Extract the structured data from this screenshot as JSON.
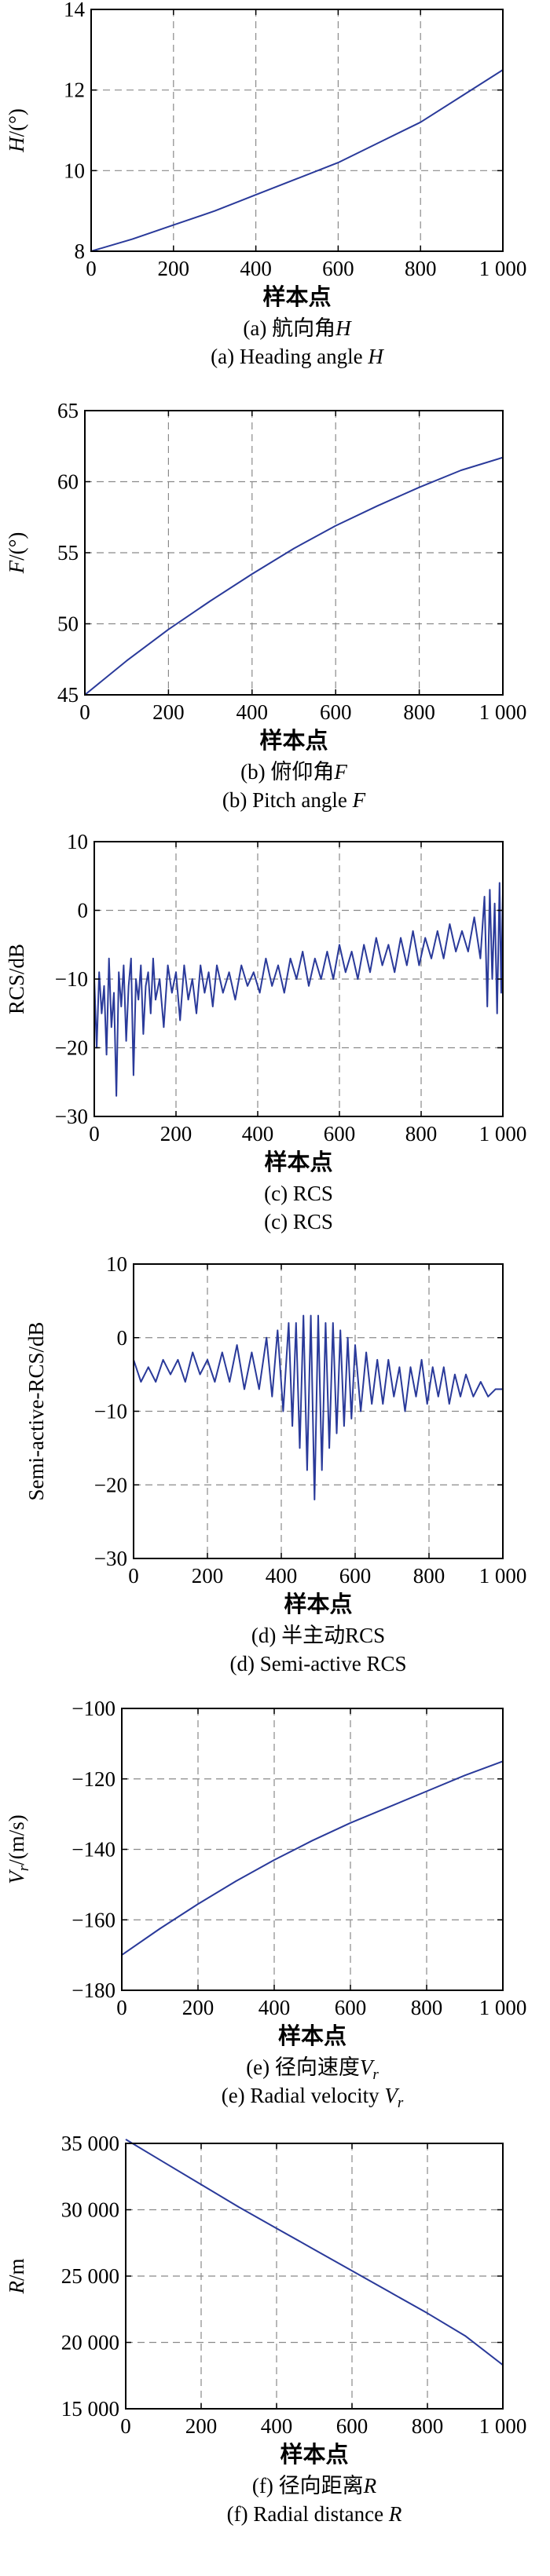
{
  "colors": {
    "line": "#2a3a9a",
    "grid": "#8a8a8a",
    "axis": "#000000",
    "text": "#000000"
  },
  "chart_data": [
    {
      "type": "line",
      "id": "a",
      "ylabel_main": "H",
      "ylabel_unit": "/(°)",
      "xlabel": "样本点",
      "caption_cn_prefix": "(a) 航向角",
      "caption_cn_var": "H",
      "caption_en_prefix": "(a) Heading angle ",
      "caption_en_var": "H",
      "xlim": [
        0,
        1000
      ],
      "ylim": [
        8,
        14
      ],
      "xticks": [
        0,
        200,
        400,
        600,
        800,
        1000
      ],
      "xtick_labels": [
        "0",
        "200",
        "400",
        "600",
        "800",
        "1 000"
      ],
      "yticks": [
        8,
        10,
        12,
        14
      ],
      "ytick_labels": [
        "8",
        "10",
        "12",
        "14"
      ],
      "grid": true,
      "x": [
        0,
        100,
        200,
        300,
        400,
        500,
        600,
        700,
        800,
        900,
        1000
      ],
      "y": [
        8.0,
        8.3,
        8.65,
        9.0,
        9.4,
        9.8,
        10.2,
        10.7,
        11.2,
        11.85,
        12.5
      ]
    },
    {
      "type": "line",
      "id": "b",
      "ylabel_main": "F",
      "ylabel_unit": "/(°)",
      "xlabel": "样本点",
      "caption_cn_prefix": "(b) 俯仰角",
      "caption_cn_var": "F",
      "caption_en_prefix": "(b) Pitch angle ",
      "caption_en_var": "F",
      "xlim": [
        0,
        1000
      ],
      "ylim": [
        45,
        65
      ],
      "xticks": [
        0,
        200,
        400,
        600,
        800,
        1000
      ],
      "xtick_labels": [
        "0",
        "200",
        "400",
        "600",
        "800",
        "1 000"
      ],
      "yticks": [
        45,
        50,
        55,
        60,
        65
      ],
      "ytick_labels": [
        "45",
        "50",
        "55",
        "60",
        "65"
      ],
      "grid": true,
      "x": [
        0,
        100,
        200,
        300,
        400,
        500,
        600,
        700,
        800,
        900,
        1000
      ],
      "y": [
        45.0,
        47.4,
        49.6,
        51.6,
        53.5,
        55.3,
        56.9,
        58.3,
        59.6,
        60.8,
        61.7
      ]
    },
    {
      "type": "line",
      "id": "c",
      "ylabel_main": "RCS/dB",
      "ylabel_unit": "",
      "xlabel": "样本点",
      "caption_cn_prefix": "(c) RCS",
      "caption_cn_var": "",
      "caption_en_prefix": "(c) RCS",
      "caption_en_var": "",
      "xlim": [
        0,
        1000
      ],
      "ylim": [
        -30,
        10
      ],
      "xticks": [
        0,
        200,
        400,
        600,
        800,
        1000
      ],
      "xtick_labels": [
        "0",
        "200",
        "400",
        "600",
        "800",
        "1 000"
      ],
      "yticks": [
        -30,
        -20,
        -10,
        0,
        10
      ],
      "ytick_labels": [
        "−30",
        "−20",
        "−10",
        "0",
        "10"
      ],
      "grid": true,
      "x": [
        0,
        6,
        12,
        18,
        24,
        30,
        36,
        42,
        48,
        54,
        60,
        66,
        72,
        78,
        84,
        90,
        96,
        102,
        108,
        114,
        120,
        126,
        132,
        138,
        144,
        150,
        160,
        170,
        180,
        190,
        200,
        210,
        220,
        230,
        240,
        250,
        260,
        270,
        280,
        290,
        300,
        315,
        330,
        345,
        360,
        375,
        390,
        405,
        420,
        435,
        450,
        465,
        480,
        495,
        510,
        525,
        540,
        555,
        570,
        585,
        600,
        615,
        630,
        645,
        660,
        675,
        690,
        705,
        720,
        735,
        750,
        765,
        780,
        795,
        810,
        825,
        840,
        855,
        870,
        885,
        900,
        915,
        930,
        945,
        955,
        962,
        968,
        974,
        980,
        986,
        992,
        996,
        1000
      ],
      "y": [
        -10,
        -20,
        -9,
        -15,
        -11,
        -21,
        -7,
        -17,
        -12,
        -27,
        -9,
        -14,
        -8,
        -19,
        -11,
        -7,
        -24,
        -10,
        -13,
        -8,
        -18,
        -11,
        -9,
        -15,
        -7,
        -13,
        -10,
        -17,
        -8,
        -12,
        -9,
        -16,
        -8,
        -13,
        -10,
        -15,
        -8,
        -12,
        -9,
        -14,
        -8,
        -12,
        -9,
        -13,
        -8,
        -11,
        -9,
        -12,
        -7,
        -11,
        -8,
        -12,
        -7,
        -10,
        -6,
        -11,
        -7,
        -10,
        -6,
        -10,
        -5,
        -9,
        -6,
        -10,
        -5,
        -9,
        -4,
        -8,
        -5,
        -9,
        -4,
        -8,
        -3,
        -8,
        -4,
        -7,
        -3,
        -7,
        -2,
        -6,
        -3,
        -6,
        -1,
        -7,
        2,
        -14,
        3,
        -10,
        1,
        -15,
        4,
        -12,
        3
      ]
    },
    {
      "type": "line",
      "id": "d",
      "ylabel_main": "Semi-active-RCS/dB",
      "ylabel_unit": "",
      "xlabel": "样本点",
      "caption_cn_prefix": "(d) 半主动RCS",
      "caption_cn_var": "",
      "caption_en_prefix": "(d) Semi-active RCS",
      "caption_en_var": "",
      "xlim": [
        0,
        1000
      ],
      "ylim": [
        -30,
        10
      ],
      "xticks": [
        0,
        200,
        400,
        600,
        800,
        1000
      ],
      "xtick_labels": [
        "0",
        "200",
        "400",
        "600",
        "800",
        "1 000"
      ],
      "yticks": [
        -30,
        -20,
        -10,
        0,
        10
      ],
      "ytick_labels": [
        "−30",
        "−20",
        "−10",
        "0",
        "10"
      ],
      "grid": true,
      "x": [
        0,
        20,
        40,
        60,
        80,
        100,
        120,
        140,
        160,
        180,
        200,
        220,
        240,
        260,
        280,
        300,
        320,
        340,
        360,
        375,
        390,
        405,
        420,
        430,
        440,
        450,
        460,
        470,
        480,
        490,
        500,
        510,
        520,
        530,
        540,
        550,
        560,
        570,
        580,
        590,
        600,
        615,
        630,
        645,
        660,
        675,
        690,
        705,
        720,
        735,
        750,
        765,
        780,
        795,
        810,
        825,
        840,
        855,
        870,
        885,
        900,
        920,
        940,
        960,
        980,
        1000
      ],
      "y": [
        -3,
        -6,
        -4,
        -6,
        -3,
        -5,
        -3,
        -6,
        -2,
        -5,
        -3,
        -6,
        -2,
        -6,
        -1,
        -7,
        -2,
        -7,
        0,
        -8,
        1,
        -10,
        2,
        -12,
        2,
        -15,
        3,
        -18,
        3,
        -22,
        3,
        -18,
        2,
        -15,
        2,
        -13,
        1,
        -12,
        0,
        -11,
        -1,
        -10,
        -2,
        -9,
        -3,
        -9,
        -3,
        -8,
        -4,
        -10,
        -4,
        -8,
        -3,
        -9,
        -4,
        -8,
        -4,
        -9,
        -5,
        -8,
        -5,
        -8,
        -6,
        -8,
        -7,
        -7
      ]
    },
    {
      "type": "line",
      "id": "e",
      "ylabel_main": "V",
      "ylabel_sub": "r",
      "ylabel_unit": "/(m/s)",
      "xlabel": "样本点",
      "caption_cn_prefix": "(e) 径向速度",
      "caption_cn_var": "V",
      "caption_cn_sub": "r",
      "caption_en_prefix": "(e) Radial velocity ",
      "caption_en_var": "V",
      "caption_en_sub": "r",
      "xlim": [
        0,
        1000
      ],
      "ylim": [
        -180,
        -100
      ],
      "xticks": [
        0,
        200,
        400,
        600,
        800,
        1000
      ],
      "xtick_labels": [
        "0",
        "200",
        "400",
        "600",
        "800",
        "1 000"
      ],
      "yticks": [
        -180,
        -160,
        -140,
        -120,
        -100
      ],
      "ytick_labels": [
        "−180",
        "−160",
        "−140",
        "−120",
        "−100"
      ],
      "grid": true,
      "x": [
        0,
        100,
        200,
        300,
        400,
        500,
        600,
        700,
        800,
        900,
        1000
      ],
      "y": [
        -170,
        -162.5,
        -155.5,
        -149,
        -143,
        -137.5,
        -132.5,
        -128,
        -123.5,
        -119,
        -115
      ]
    },
    {
      "type": "line",
      "id": "f",
      "ylabel_main": "R",
      "ylabel_unit": "/m",
      "xlabel": "样本点",
      "caption_cn_prefix": "(f) 径向距离",
      "caption_cn_var": "R",
      "caption_en_prefix": "(f) Radial distance ",
      "caption_en_var": "R",
      "xlim": [
        0,
        1000
      ],
      "ylim": [
        15000,
        35000
      ],
      "xticks": [
        0,
        200,
        400,
        600,
        800,
        1000
      ],
      "xtick_labels": [
        "0",
        "200",
        "400",
        "600",
        "800",
        "1 000"
      ],
      "yticks": [
        15000,
        20000,
        25000,
        30000,
        35000
      ],
      "ytick_labels": [
        "15 000",
        "20 000",
        "25 000",
        "30 000",
        "35 000"
      ],
      "grid": true,
      "x": [
        0,
        100,
        200,
        300,
        400,
        500,
        600,
        700,
        800,
        900,
        1000
      ],
      "y": [
        35300,
        33600,
        31900,
        30200,
        28600,
        27000,
        25400,
        23800,
        22200,
        20500,
        18300
      ]
    }
  ]
}
